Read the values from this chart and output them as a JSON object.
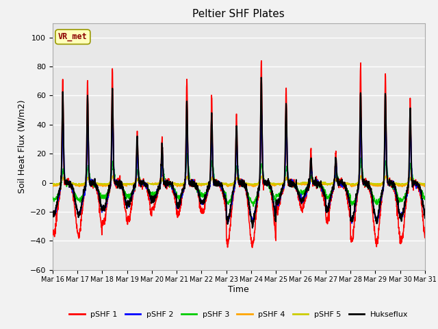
{
  "title": "Peltier SHF Plates",
  "xlabel": "Time",
  "ylabel": "Soil Heat Flux (W/m2)",
  "ylim": [
    -60,
    110
  ],
  "yticks": [
    -60,
    -40,
    -20,
    0,
    20,
    40,
    60,
    80,
    100
  ],
  "n_days": 15,
  "xtick_labels": [
    "Mar 16",
    "Mar 17",
    "Mar 18",
    "Mar 19",
    "Mar 20",
    "Mar 21",
    "Mar 22",
    "Mar 23",
    "Mar 24",
    "Mar 25",
    "Mar 26",
    "Mar 27",
    "Mar 28",
    "Mar 29",
    "Mar 30",
    "Mar 31"
  ],
  "annotation_text": "VR_met",
  "annotation_color": "#8B0000",
  "annotation_bg": "#FFFFBB",
  "annotation_border": "#999900",
  "fig_bg_color": "#F2F2F2",
  "plot_bg": "#E8E8E8",
  "grid_color": "#FFFFFF",
  "series": {
    "pSHF 1": {
      "color": "#FF0000",
      "lw": 1.2,
      "zorder": 3
    },
    "pSHF 2": {
      "color": "#0000FF",
      "lw": 1.2,
      "zorder": 4
    },
    "pSHF 3": {
      "color": "#00CC00",
      "lw": 1.2,
      "zorder": 3
    },
    "pSHF 4": {
      "color": "#FFA500",
      "lw": 1.2,
      "zorder": 3
    },
    "pSHF 5": {
      "color": "#CCCC00",
      "lw": 1.2,
      "zorder": 3
    },
    "Hukseflux": {
      "color": "#000000",
      "lw": 1.4,
      "zorder": 5
    }
  },
  "legend_order": [
    "pSHF 1",
    "pSHF 2",
    "pSHF 3",
    "pSHF 4",
    "pSHF 5",
    "Hukseflux"
  ]
}
